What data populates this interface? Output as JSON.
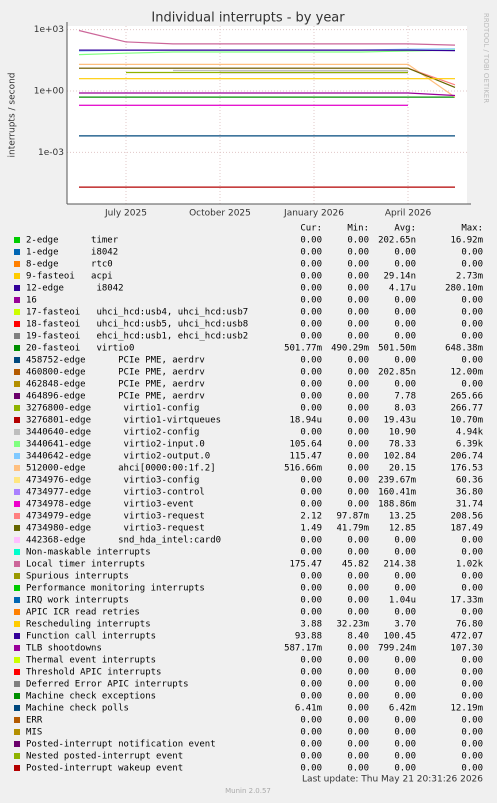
{
  "chart_data": {
    "type": "line",
    "title": "Individual interrupts - by year",
    "y_label": "interrupts / second",
    "side_label": "RRDTOOL / TOBI OETIKER",
    "log_scale": true,
    "grid": true,
    "categories": [
      null,
      "July 2025",
      null,
      "October 2025",
      null,
      "January 2026",
      null,
      "April 2026",
      null
    ],
    "ylim": [
      3e-06,
      1500
    ],
    "yticks": [
      {
        "value": 1000,
        "label": "1e+03"
      },
      {
        "value": 1,
        "label": "1e+00"
      },
      {
        "value": 0.001,
        "label": "1e-03"
      }
    ],
    "stat_headers": [
      "Cur:",
      "Min:",
      "Avg:",
      "Max:"
    ],
    "series": [
      {
        "name": "2-edge      timer",
        "color": "#00cc00",
        "values": [
          null,
          null,
          null,
          null,
          null,
          null,
          null,
          null,
          null
        ],
        "cur": "0.00",
        "min": "0.00",
        "avg": "202.65n",
        "max": "16.92m"
      },
      {
        "name": "1-edge      i8042",
        "color": "#0066b3",
        "values": [
          null,
          null,
          null,
          null,
          null,
          null,
          null,
          null,
          null
        ],
        "cur": "0.00",
        "min": "0.00",
        "avg": "0.00",
        "max": "0.00"
      },
      {
        "name": "8-edge      rtc0",
        "color": "#ff8000",
        "values": [
          null,
          null,
          null,
          null,
          null,
          null,
          null,
          null,
          null
        ],
        "cur": "0.00",
        "min": "0.00",
        "avg": "0.00",
        "max": "0.00"
      },
      {
        "name": "9-fasteoi   acpi",
        "color": "#ffcc00",
        "values": [
          null,
          null,
          null,
          null,
          null,
          null,
          null,
          null,
          null
        ],
        "cur": "0.00",
        "min": "0.00",
        "avg": "29.14n",
        "max": "2.73m"
      },
      {
        "name": "12-edge      i8042",
        "color": "#330099",
        "values": [
          null,
          null,
          null,
          null,
          null,
          null,
          null,
          null,
          null
        ],
        "cur": "0.00",
        "min": "0.00",
        "avg": "4.17u",
        "max": "280.10m"
      },
      {
        "name": "16",
        "color": "#990099",
        "values": [
          null,
          null,
          null,
          null,
          null,
          null,
          null,
          null,
          null
        ],
        "cur": "0.00",
        "min": "0.00",
        "avg": "0.00",
        "max": "0.00"
      },
      {
        "name": "17-fasteoi   uhci_hcd:usb4, uhci_hcd:usb7",
        "color": "#ccff00",
        "values": [
          null,
          null,
          null,
          null,
          null,
          null,
          null,
          null,
          null
        ],
        "cur": "0.00",
        "min": "0.00",
        "avg": "0.00",
        "max": "0.00"
      },
      {
        "name": "18-fasteoi   uhci_hcd:usb5, uhci_hcd:usb8",
        "color": "#ff0000",
        "values": [
          null,
          null,
          null,
          null,
          null,
          null,
          null,
          null,
          null
        ],
        "cur": "0.00",
        "min": "0.00",
        "avg": "0.00",
        "max": "0.00"
      },
      {
        "name": "19-fasteoi   ehci_hcd:usb1, ehci_hcd:usb2",
        "color": "#808080",
        "values": [
          null,
          null,
          null,
          null,
          null,
          null,
          null,
          null,
          null
        ],
        "cur": "0.00",
        "min": "0.00",
        "avg": "0.00",
        "max": "0.00"
      },
      {
        "name": "20-fasteoi   virtio0",
        "color": "#008f00",
        "values": [
          0.5,
          0.5,
          0.5,
          0.5,
          0.5,
          0.5,
          0.5,
          0.5,
          0.5
        ],
        "cur": "501.77m",
        "min": "490.29m",
        "avg": "501.50m",
        "max": "648.38m"
      },
      {
        "name": "458752-edge      PCIe PME, aerdrv",
        "color": "#00487d",
        "values": [
          null,
          null,
          null,
          null,
          null,
          null,
          null,
          null,
          null
        ],
        "cur": "0.00",
        "min": "0.00",
        "avg": "0.00",
        "max": "0.00"
      },
      {
        "name": "460800-edge      PCIe PME, aerdrv",
        "color": "#b35a00",
        "values": [
          null,
          null,
          null,
          null,
          null,
          null,
          null,
          null,
          null
        ],
        "cur": "0.00",
        "min": "0.00",
        "avg": "202.85n",
        "max": "12.00m"
      },
      {
        "name": "462848-edge      PCIe PME, aerdrv",
        "color": "#b38f00",
        "values": [
          null,
          null,
          null,
          null,
          null,
          null,
          null,
          null,
          null
        ],
        "cur": "0.00",
        "min": "0.00",
        "avg": "0.00",
        "max": "0.00"
      },
      {
        "name": "464896-edge      PCIe PME, aerdrv",
        "color": "#6b006b",
        "values": [
          null,
          null,
          null,
          8,
          8,
          8,
          8,
          8,
          null
        ],
        "cur": "0.00",
        "min": "0.00",
        "avg": "7.78",
        "max": "265.66"
      },
      {
        "name": "3276800-edge      virtio1-config",
        "color": "#8fb300",
        "values": [
          null,
          8,
          8,
          8,
          8,
          8,
          8,
          8,
          null
        ],
        "cur": "0.00",
        "min": "0.00",
        "avg": "8.03",
        "max": "266.77"
      },
      {
        "name": "3276801-edge      virtio1-virtqueues",
        "color": "#b30000",
        "values": [
          2e-05,
          2e-05,
          2e-05,
          2e-05,
          2e-05,
          2e-05,
          2e-05,
          2e-05,
          2e-05
        ],
        "cur": "18.94u",
        "min": "0.00",
        "avg": "19.43u",
        "max": "10.70m"
      },
      {
        "name": "3440640-edge      virtio2-config",
        "color": "#bebebe",
        "values": [
          null,
          null,
          10,
          10,
          10,
          10,
          10,
          10,
          null
        ],
        "cur": "0.00",
        "min": "0.00",
        "avg": "10.90",
        "max": "4.94k"
      },
      {
        "name": "3440641-edge      virtio2-input.0",
        "color": "#80ff80",
        "values": [
          60,
          70,
          80,
          80,
          80,
          80,
          80,
          90,
          100
        ],
        "cur": "105.64",
        "min": "0.00",
        "avg": "78.33",
        "max": "6.39k"
      },
      {
        "name": "3440642-edge      virtio2-output.0",
        "color": "#80c9ff",
        "values": [
          90,
          100,
          100,
          100,
          100,
          100,
          100,
          110,
          115
        ],
        "cur": "115.47",
        "min": "0.00",
        "avg": "102.84",
        "max": "206.74"
      },
      {
        "name": "512000-edge      ahci[0000:00:1f.2]",
        "color": "#ffc080",
        "values": [
          20,
          20,
          20,
          20,
          20,
          20,
          20,
          20,
          0.5
        ],
        "cur": "516.66m",
        "min": "0.00",
        "avg": "20.15",
        "max": "176.53"
      },
      {
        "name": "4734976-edge      virtio3-config",
        "color": "#ffe680",
        "values": [
          0.2,
          0.2,
          0.2,
          0.2,
          0.2,
          0.2,
          0.2,
          0.2,
          null
        ],
        "cur": "0.00",
        "min": "0.00",
        "avg": "239.67m",
        "max": "60.36"
      },
      {
        "name": "4734977-edge      virtio3-control",
        "color": "#aa80ff",
        "values": [
          0.2,
          0.2,
          0.2,
          0.2,
          0.2,
          0.2,
          0.2,
          0.2,
          null
        ],
        "cur": "0.00",
        "min": "0.00",
        "avg": "160.41m",
        "max": "36.80"
      },
      {
        "name": "4734978-edge      virtio3-event",
        "color": "#ee00cc",
        "values": [
          0.2,
          0.2,
          0.2,
          0.2,
          0.2,
          0.2,
          0.2,
          0.2,
          null
        ],
        "cur": "0.00",
        "min": "0.00",
        "avg": "188.86m",
        "max": "31.74"
      },
      {
        "name": "4734979-edge      virtio3-request",
        "color": "#ff8080",
        "values": [
          13,
          13,
          13,
          13,
          13,
          13,
          13,
          13,
          2
        ],
        "cur": "2.12",
        "min": "97.87m",
        "avg": "13.25",
        "max": "208.56"
      },
      {
        "name": "4734980-edge      virtio3-request",
        "color": "#666600",
        "values": [
          13,
          13,
          13,
          13,
          13,
          13,
          13,
          13,
          1.5
        ],
        "cur": "1.49",
        "min": "41.79m",
        "avg": "12.85",
        "max": "187.49"
      },
      {
        "name": "442368-edge      snd_hda_intel:card0",
        "color": "#ffbfff",
        "values": [
          null,
          null,
          null,
          null,
          null,
          null,
          null,
          null,
          null
        ],
        "cur": "0.00",
        "min": "0.00",
        "avg": "0.00",
        "max": "0.00"
      },
      {
        "name": "Non-maskable interrupts",
        "color": "#00ffcc",
        "values": [
          null,
          null,
          null,
          null,
          null,
          null,
          null,
          null,
          null
        ],
        "cur": "0.00",
        "min": "0.00",
        "avg": "0.00",
        "max": "0.00"
      },
      {
        "name": "Local timer interrupts",
        "color": "#cc6699",
        "values": [
          900,
          250,
          200,
          200,
          200,
          200,
          200,
          200,
          175
        ],
        "cur": "175.47",
        "min": "45.82",
        "avg": "214.38",
        "max": "1.02k"
      },
      {
        "name": "Spurious interrupts",
        "color": "#999900",
        "values": [
          null,
          null,
          null,
          null,
          null,
          null,
          null,
          null,
          null
        ],
        "cur": "0.00",
        "min": "0.00",
        "avg": "0.00",
        "max": "0.00"
      },
      {
        "name": "Performance monitoring interrupts",
        "color": "#00cc00",
        "values": [
          null,
          null,
          null,
          null,
          null,
          null,
          null,
          null,
          null
        ],
        "cur": "0.00",
        "min": "0.00",
        "avg": "0.00",
        "max": "0.00"
      },
      {
        "name": "IRQ work interrupts",
        "color": "#0066b3",
        "values": [
          null,
          null,
          null,
          null,
          null,
          null,
          null,
          null,
          null
        ],
        "cur": "0.00",
        "min": "0.00",
        "avg": "1.04u",
        "max": "17.33m"
      },
      {
        "name": "APIC ICR read retries",
        "color": "#ff8000",
        "values": [
          null,
          null,
          null,
          null,
          null,
          null,
          null,
          null,
          null
        ],
        "cur": "0.00",
        "min": "0.00",
        "avg": "0.00",
        "max": "0.00"
      },
      {
        "name": "Rescheduling interrupts",
        "color": "#ffcc00",
        "values": [
          4,
          4,
          4,
          4,
          4,
          4,
          4,
          4,
          4
        ],
        "cur": "3.88",
        "min": "32.23m",
        "avg": "3.70",
        "max": "76.80"
      },
      {
        "name": "Function call interrupts",
        "color": "#330099",
        "values": [
          100,
          100,
          100,
          100,
          100,
          100,
          100,
          100,
          94
        ],
        "cur": "93.88",
        "min": "8.40",
        "avg": "100.45",
        "max": "472.07"
      },
      {
        "name": "TLB shootdowns",
        "color": "#990099",
        "values": [
          0.8,
          0.8,
          0.8,
          0.8,
          0.8,
          0.8,
          0.8,
          0.8,
          0.6
        ],
        "cur": "587.17m",
        "min": "0.00",
        "avg": "799.24m",
        "max": "107.30"
      },
      {
        "name": "Thermal event interrupts",
        "color": "#ccff00",
        "values": [
          null,
          null,
          null,
          null,
          null,
          null,
          null,
          null,
          null
        ],
        "cur": "0.00",
        "min": "0.00",
        "avg": "0.00",
        "max": "0.00"
      },
      {
        "name": "Threshold APIC interrupts",
        "color": "#ff0000",
        "values": [
          null,
          null,
          null,
          null,
          null,
          null,
          null,
          null,
          null
        ],
        "cur": "0.00",
        "min": "0.00",
        "avg": "0.00",
        "max": "0.00"
      },
      {
        "name": "Deferred Error APIC interrupts",
        "color": "#808080",
        "values": [
          null,
          null,
          null,
          null,
          null,
          null,
          null,
          null,
          null
        ],
        "cur": "0.00",
        "min": "0.00",
        "avg": "0.00",
        "max": "0.00"
      },
      {
        "name": "Machine check exceptions",
        "color": "#008f00",
        "values": [
          null,
          null,
          null,
          null,
          null,
          null,
          null,
          null,
          null
        ],
        "cur": "0.00",
        "min": "0.00",
        "avg": "0.00",
        "max": "0.00"
      },
      {
        "name": "Machine check polls",
        "color": "#00487d",
        "values": [
          0.0064,
          0.0064,
          0.0064,
          0.0064,
          0.0064,
          0.0064,
          0.0064,
          0.0064,
          0.0064
        ],
        "cur": "6.41m",
        "min": "0.00",
        "avg": "6.42m",
        "max": "12.19m"
      },
      {
        "name": "ERR",
        "color": "#b35a00",
        "values": [
          null,
          null,
          null,
          null,
          null,
          null,
          null,
          null,
          null
        ],
        "cur": "0.00",
        "min": "0.00",
        "avg": "0.00",
        "max": "0.00"
      },
      {
        "name": "MIS",
        "color": "#b38f00",
        "values": [
          null,
          null,
          null,
          null,
          null,
          null,
          null,
          null,
          null
        ],
        "cur": "0.00",
        "min": "0.00",
        "avg": "0.00",
        "max": "0.00"
      },
      {
        "name": "Posted-interrupt notification event",
        "color": "#6b006b",
        "values": [
          null,
          null,
          null,
          null,
          null,
          null,
          null,
          null,
          null
        ],
        "cur": "0.00",
        "min": "0.00",
        "avg": "0.00",
        "max": "0.00"
      },
      {
        "name": "Nested posted-interrupt event",
        "color": "#8fb300",
        "values": [
          null,
          null,
          null,
          null,
          null,
          null,
          null,
          null,
          null
        ],
        "cur": "0.00",
        "min": "0.00",
        "avg": "0.00",
        "max": "0.00"
      },
      {
        "name": "Posted-interrupt wakeup event",
        "color": "#b30000",
        "values": [
          null,
          null,
          null,
          null,
          null,
          null,
          null,
          null,
          null
        ],
        "cur": "0.00",
        "min": "0.00",
        "avg": "0.00",
        "max": "0.00"
      }
    ],
    "last_update": "Last update: Thu May 21 20:31:26 2026",
    "footer": "Munin 2.0.57"
  }
}
